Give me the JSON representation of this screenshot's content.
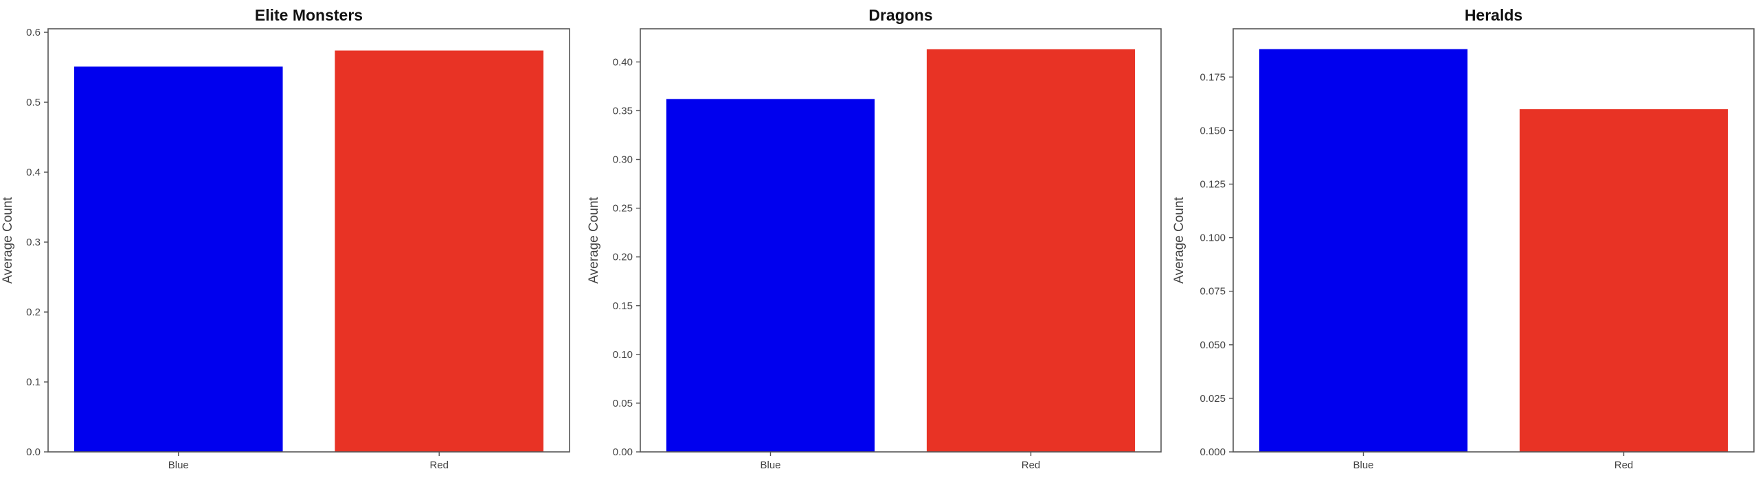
{
  "chart_data": [
    {
      "type": "bar",
      "title": "Elite Monsters",
      "xlabel": "",
      "ylabel": "Average Count",
      "categories": [
        "Blue",
        "Red"
      ],
      "values": [
        0.551,
        0.574
      ],
      "colors": [
        "#0000ee",
        "#e83325"
      ],
      "ylim": [
        0,
        0.605
      ],
      "yticks": [
        0.0,
        0.1,
        0.2,
        0.3,
        0.4,
        0.5,
        0.6
      ],
      "ytick_labels": [
        "0.0",
        "0.1",
        "0.2",
        "0.3",
        "0.4",
        "0.5",
        "0.6"
      ],
      "grid": false,
      "legend": "none"
    },
    {
      "type": "bar",
      "title": "Dragons",
      "xlabel": "",
      "ylabel": "Average Count",
      "categories": [
        "Blue",
        "Red"
      ],
      "values": [
        0.362,
        0.413
      ],
      "colors": [
        "#0000ee",
        "#e83325"
      ],
      "ylim": [
        0,
        0.434
      ],
      "yticks": [
        0.0,
        0.05,
        0.1,
        0.15,
        0.2,
        0.25,
        0.3,
        0.35,
        0.4
      ],
      "ytick_labels": [
        "0.00",
        "0.05",
        "0.10",
        "0.15",
        "0.20",
        "0.25",
        "0.30",
        "0.35",
        "0.40"
      ],
      "grid": false,
      "legend": "none"
    },
    {
      "type": "bar",
      "title": "Heralds",
      "xlabel": "",
      "ylabel": "Average Count",
      "categories": [
        "Blue",
        "Red"
      ],
      "values": [
        0.188,
        0.16
      ],
      "colors": [
        "#0000ee",
        "#e83325"
      ],
      "ylim": [
        0,
        0.1975
      ],
      "yticks": [
        0.0,
        0.025,
        0.05,
        0.075,
        0.1,
        0.125,
        0.15,
        0.175
      ],
      "ytick_labels": [
        "0.000",
        "0.025",
        "0.050",
        "0.075",
        "0.100",
        "0.125",
        "0.150",
        "0.175"
      ],
      "grid": false,
      "legend": "none"
    }
  ]
}
